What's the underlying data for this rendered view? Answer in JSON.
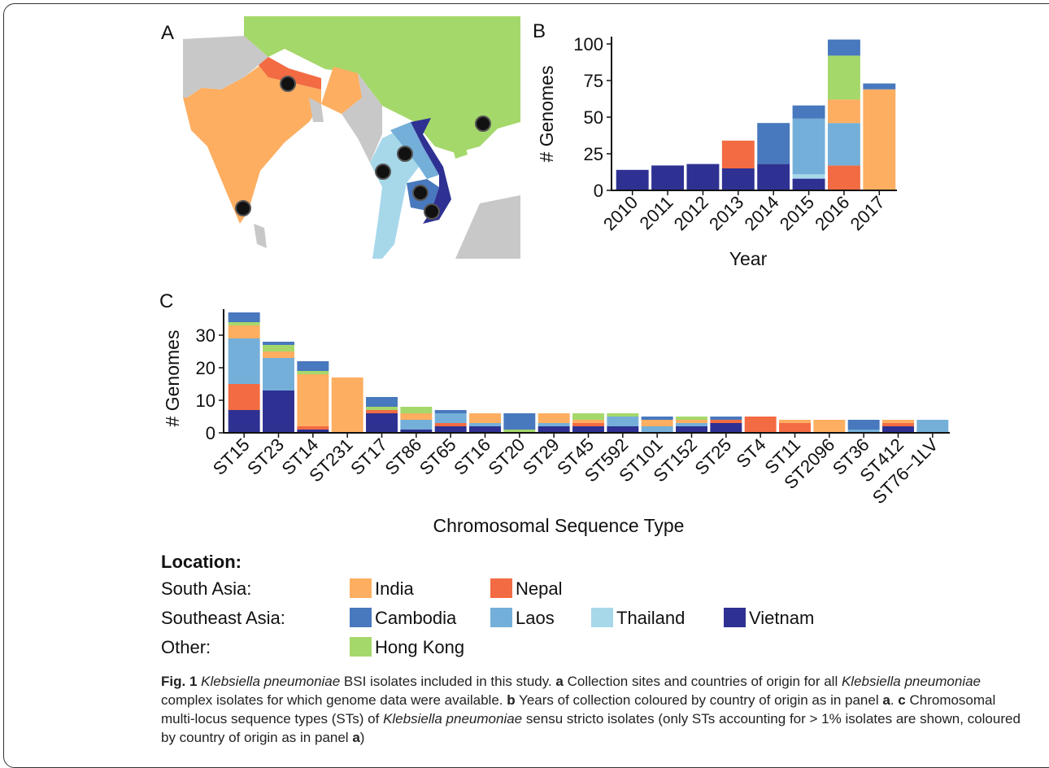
{
  "panels": [
    "A",
    "B",
    "C"
  ],
  "chart_data": [
    {
      "type": "bar",
      "stacked": true,
      "ylabel": "# Genomes",
      "xlabel": "Year",
      "categories": [
        "2010",
        "2011",
        "2012",
        "2013",
        "2014",
        "2015",
        "2016",
        "2017"
      ],
      "ylim": [
        0,
        105
      ],
      "yticks": [
        0,
        25,
        50,
        75,
        100
      ],
      "series": [
        {
          "name": "Vietnam",
          "color": "#2e3192",
          "values": [
            14,
            17,
            18,
            15,
            18,
            8,
            0,
            0
          ]
        },
        {
          "name": "Thailand",
          "color": "#a6d8ea",
          "values": [
            0,
            0,
            0,
            0,
            0,
            3,
            0,
            0
          ]
        },
        {
          "name": "Nepal",
          "color": "#f26b43",
          "values": [
            0,
            0,
            0,
            19,
            0,
            0,
            17,
            0
          ]
        },
        {
          "name": "Laos",
          "color": "#74afd9",
          "values": [
            0,
            0,
            0,
            0,
            0,
            38,
            29,
            0
          ]
        },
        {
          "name": "India",
          "color": "#fdae61",
          "values": [
            0,
            0,
            0,
            0,
            0,
            0,
            16,
            69
          ]
        },
        {
          "name": "Hong Kong",
          "color": "#a5d86a",
          "values": [
            0,
            0,
            0,
            0,
            0,
            0,
            30,
            0
          ]
        },
        {
          "name": "Cambodia",
          "color": "#4878bd",
          "values": [
            0,
            0,
            0,
            0,
            28,
            9,
            11,
            4
          ]
        }
      ]
    },
    {
      "type": "bar",
      "stacked": true,
      "ylabel": "# Genomes",
      "xlabel": "Chromosomal Sequence Type",
      "categories": [
        "ST15",
        "ST23",
        "ST14",
        "ST231",
        "ST17",
        "ST86",
        "ST65",
        "ST16",
        "ST20",
        "ST29",
        "ST45",
        "ST592",
        "ST101",
        "ST152",
        "ST25",
        "ST4",
        "ST11",
        "ST2096",
        "ST36",
        "ST412",
        "ST76−1LV"
      ],
      "ylim": [
        0,
        38
      ],
      "yticks": [
        0,
        10,
        20,
        30
      ],
      "series": [
        {
          "name": "Vietnam",
          "color": "#2e3192",
          "values": [
            7,
            13,
            1,
            0,
            6,
            1,
            2,
            2,
            0,
            2,
            2,
            2,
            0,
            2,
            3,
            0,
            0,
            0,
            0,
            2,
            0
          ]
        },
        {
          "name": "Thailand",
          "color": "#a6d8ea",
          "values": [
            0,
            0,
            0,
            0,
            0,
            0,
            0,
            0,
            0,
            0,
            0,
            0,
            0,
            0,
            0,
            0,
            0,
            0,
            0,
            0,
            0
          ]
        },
        {
          "name": "Nepal",
          "color": "#f26b43",
          "values": [
            8,
            0,
            1,
            0,
            1,
            0,
            1,
            0,
            0,
            0,
            1,
            0,
            0,
            0,
            1,
            5,
            3,
            0,
            0,
            1,
            0
          ]
        },
        {
          "name": "Laos",
          "color": "#74afd9",
          "values": [
            14,
            10,
            0,
            0,
            0,
            3,
            3,
            1,
            0,
            1,
            0,
            3,
            2,
            1,
            0,
            0,
            0,
            0,
            1,
            0,
            4
          ]
        },
        {
          "name": "India",
          "color": "#fdae61",
          "values": [
            4,
            2,
            16,
            17,
            0,
            2,
            0,
            3,
            0,
            3,
            1,
            0,
            2,
            1,
            0,
            0,
            1,
            4,
            0,
            1,
            0
          ]
        },
        {
          "name": "Hong Kong",
          "color": "#a5d86a",
          "values": [
            1,
            2,
            1,
            0,
            1,
            2,
            0,
            0,
            1,
            0,
            2,
            1,
            0,
            1,
            0,
            0,
            0,
            0,
            0,
            0,
            0
          ]
        },
        {
          "name": "Cambodia",
          "color": "#4878bd",
          "values": [
            3,
            1,
            3,
            0,
            3,
            0,
            1,
            0,
            5,
            0,
            0,
            0,
            1,
            0,
            1,
            0,
            0,
            0,
            3,
            0,
            0
          ]
        }
      ]
    }
  ],
  "legend": {
    "title": "Location:",
    "groups": [
      {
        "label": "South Asia:",
        "series": [
          "India",
          "Nepal"
        ]
      },
      {
        "label": "Southeast Asia:",
        "series": [
          "Cambodia",
          "Laos",
          "Thailand",
          "Vietnam"
        ]
      },
      {
        "label": "Other:",
        "series": [
          "Hong Kong"
        ]
      }
    ]
  },
  "caption": [
    {
      "text": "Fig. 1",
      "style": "bold"
    },
    {
      "text": " ",
      "style": "normal"
    },
    {
      "text": "Klebsiella pneumoniae",
      "style": "italic"
    },
    {
      "text": " BSI isolates included in this study. ",
      "style": "normal"
    },
    {
      "text": "a",
      "style": "bold"
    },
    {
      "text": " Collection sites and countries of origin for all ",
      "style": "normal"
    },
    {
      "text": "Klebsiella pneumoniae",
      "style": "italic"
    },
    {
      "text": " complex isolates for which genome data were available. ",
      "style": "normal"
    },
    {
      "text": "b",
      "style": "bold"
    },
    {
      "text": " Years of collection coloured by country of origin as in panel ",
      "style": "normal"
    },
    {
      "text": "a",
      "style": "bold"
    },
    {
      "text": ". ",
      "style": "normal"
    },
    {
      "text": "c",
      "style": "bold"
    },
    {
      "text": " Chromosomal multi-locus sequence types (STs) of ",
      "style": "normal"
    },
    {
      "text": "Klebsiella pneumoniae",
      "style": "italic"
    },
    {
      "text": " sensu stricto isolates (only STs accounting for > 1% isolates are shown, coloured by country of origin as in panel ",
      "style": "normal"
    },
    {
      "text": "a",
      "style": "bold"
    },
    {
      "text": ")",
      "style": "normal"
    }
  ]
}
